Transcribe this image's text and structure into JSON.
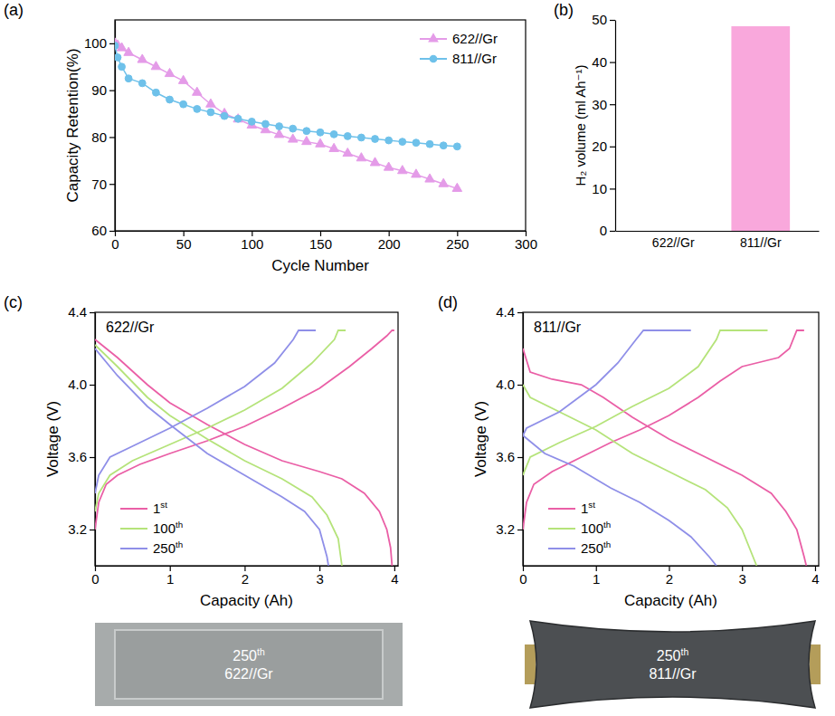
{
  "chart_data": [
    {
      "type": "line",
      "panel_label": "(a)",
      "x_label": "Cycle Number",
      "y_label": "Capacity Retention(%)",
      "x": [
        0,
        2,
        5,
        10,
        20,
        30,
        40,
        50,
        60,
        70,
        80,
        90,
        100,
        110,
        120,
        130,
        140,
        150,
        160,
        170,
        180,
        190,
        200,
        210,
        220,
        230,
        240,
        250
      ],
      "xlim": [
        0,
        300
      ],
      "xticks": [
        0,
        50,
        100,
        150,
        200,
        250,
        300
      ],
      "ylim": [
        60,
        105
      ],
      "yticks": [
        60,
        70,
        80,
        90,
        100
      ],
      "legend": "upper right",
      "series": [
        {
          "name": "622//Gr",
          "color": "#e49be8",
          "marker": "triangle",
          "values": [
            100,
            99.6,
            99,
            98,
            96.5,
            95,
            93.5,
            92,
            89.5,
            87,
            85,
            83.8,
            82.5,
            81.5,
            80.5,
            79.5,
            79,
            78.5,
            77.5,
            76.5,
            75.5,
            74.5,
            73.5,
            72.8,
            72,
            71,
            70,
            69
          ]
        },
        {
          "name": "811//Gr",
          "color": "#6ec1ea",
          "marker": "circle",
          "values": [
            99.5,
            97,
            95,
            92.5,
            91.5,
            89.5,
            88,
            87,
            86,
            85.3,
            84.5,
            83.9,
            83.3,
            82.8,
            82.3,
            81.8,
            81.3,
            81,
            80.6,
            80.2,
            79.9,
            79.6,
            79.3,
            79,
            78.8,
            78.5,
            78.2,
            78
          ]
        }
      ]
    },
    {
      "type": "bar",
      "panel_label": "(b)",
      "y_label": "H₂ volume (ml Ah⁻¹)",
      "categories": [
        "622//Gr",
        "811//Gr"
      ],
      "values": [
        0,
        48.5
      ],
      "color": "#f9a8dc",
      "ylim": [
        0,
        50
      ],
      "yticks": [
        0,
        10,
        20,
        30,
        40,
        50
      ]
    },
    {
      "type": "line",
      "panel_label": "(c)",
      "inset_title": "622//Gr",
      "x_label": "Capacity (Ah)",
      "y_label": "Voltage (V)",
      "xlim": [
        0,
        4.05
      ],
      "xticks": [
        0,
        1,
        2,
        3,
        4
      ],
      "ylim": [
        3.0,
        4.4
      ],
      "yticks": [
        3.2,
        3.6,
        {
          "value": 4,
          "label": "4.0"
        },
        4.4
      ],
      "legend": "lower left",
      "photo_caption": [
        "250th",
        "622//Gr"
      ],
      "series": [
        {
          "name": "1st",
          "color": "#ea5fa6",
          "charge": {
            "x": [
              0,
              0.05,
              0.15,
              0.3,
              0.6,
              1.0,
              1.5,
              2.0,
              2.5,
              3.0,
              3.4,
              3.7,
              3.9,
              3.97,
              4.0
            ],
            "values": [
              3.2,
              3.35,
              3.45,
              3.5,
              3.56,
              3.62,
              3.69,
              3.77,
              3.87,
              3.98,
              4.1,
              4.2,
              4.27,
              4.3,
              4.3
            ]
          },
          "discharge": {
            "x": [
              0,
              0.3,
              0.7,
              1.0,
              1.5,
              2.0,
              2.5,
              3.0,
              3.3,
              3.6,
              3.8,
              3.9,
              3.95,
              3.97
            ],
            "values": [
              4.25,
              4.15,
              4.0,
              3.9,
              3.78,
              3.67,
              3.58,
              3.52,
              3.48,
              3.4,
              3.3,
              3.2,
              3.1,
              3.0
            ]
          }
        },
        {
          "name": "100th",
          "color": "#b5e37a",
          "charge": {
            "x": [
              0,
              0.05,
              0.2,
              0.5,
              1.0,
              1.5,
              2.0,
              2.5,
              2.9,
              3.2,
              3.25,
              3.35
            ],
            "values": [
              3.3,
              3.4,
              3.5,
              3.58,
              3.67,
              3.76,
              3.86,
              3.98,
              4.12,
              4.25,
              4.3,
              4.3
            ]
          },
          "discharge": {
            "x": [
              0,
              0.3,
              0.7,
              1.0,
              1.5,
              2.0,
              2.5,
              2.9,
              3.1,
              3.25,
              3.3
            ],
            "values": [
              4.22,
              4.1,
              3.93,
              3.83,
              3.7,
              3.58,
              3.48,
              3.38,
              3.28,
              3.15,
              3.0
            ]
          }
        },
        {
          "name": "250th",
          "color": "#8f8fe8",
          "charge": {
            "x": [
              0,
              0.05,
              0.2,
              0.5,
              1.0,
              1.5,
              2.0,
              2.4,
              2.65,
              2.72,
              2.95
            ],
            "values": [
              3.4,
              3.5,
              3.6,
              3.66,
              3.76,
              3.87,
              3.99,
              4.12,
              4.25,
              4.3,
              4.3
            ]
          },
          "discharge": {
            "x": [
              0,
              0.3,
              0.7,
              1.0,
              1.5,
              2.0,
              2.5,
              2.8,
              3.0,
              3.1,
              3.12
            ],
            "values": [
              4.2,
              4.05,
              3.88,
              3.78,
              3.62,
              3.5,
              3.38,
              3.3,
              3.2,
              3.05,
              3.0
            ]
          }
        }
      ]
    },
    {
      "type": "line",
      "panel_label": "(d)",
      "inset_title": "811//Gr",
      "x_label": "Capacity (Ah)",
      "y_label": "Voltage (V)",
      "xlim": [
        0,
        4.05
      ],
      "xticks": [
        0,
        1,
        2,
        3,
        4
      ],
      "ylim": [
        3.0,
        4.4
      ],
      "yticks": [
        3.2,
        3.6,
        {
          "value": 4,
          "label": "4.0"
        },
        4.4
      ],
      "legend": "lower left",
      "photo_caption": [
        "250th",
        "811//Gr"
      ],
      "series": [
        {
          "name": "1st",
          "color": "#ea5fa6",
          "charge": {
            "x": [
              0,
              0.05,
              0.15,
              0.4,
              0.8,
              1.2,
              1.6,
              2.0,
              2.4,
              2.7,
              3.0,
              3.3,
              3.5,
              3.65,
              3.75,
              3.85
            ],
            "values": [
              3.2,
              3.35,
              3.45,
              3.52,
              3.6,
              3.68,
              3.75,
              3.83,
              3.93,
              4.02,
              4.1,
              4.13,
              4.15,
              4.2,
              4.3,
              4.3
            ]
          },
          "discharge": {
            "x": [
              0,
              0.1,
              0.4,
              0.8,
              1.1,
              1.5,
              2.0,
              2.5,
              3.0,
              3.4,
              3.6,
              3.75,
              3.85,
              3.88
            ],
            "values": [
              4.2,
              4.07,
              4.03,
              4.0,
              3.93,
              3.82,
              3.7,
              3.6,
              3.5,
              3.4,
              3.3,
              3.2,
              3.05,
              3.0
            ]
          }
        },
        {
          "name": "100th",
          "color": "#b5e37a",
          "charge": {
            "x": [
              0,
              0.1,
              0.5,
              1.0,
              1.5,
              2.0,
              2.4,
              2.65,
              2.7,
              3.35
            ],
            "values": [
              3.5,
              3.6,
              3.68,
              3.77,
              3.88,
              3.98,
              4.1,
              4.25,
              4.3,
              4.3
            ]
          },
          "discharge": {
            "x": [
              0,
              0.1,
              0.5,
              1.0,
              1.5,
              2.0,
              2.5,
              2.8,
              3.0,
              3.15,
              3.2
            ],
            "values": [
              4.0,
              3.93,
              3.85,
              3.75,
              3.62,
              3.52,
              3.42,
              3.32,
              3.2,
              3.05,
              3.0
            ]
          }
        },
        {
          "name": "250th",
          "color": "#8f8fe8",
          "charge": {
            "x": [
              0,
              0.05,
              0.5,
              1.0,
              1.3,
              1.55,
              1.65,
              2.3
            ],
            "values": [
              3.72,
              3.76,
              3.85,
              4.0,
              4.12,
              4.25,
              4.3,
              4.3
            ]
          },
          "discharge": {
            "x": [
              0,
              0.3,
              0.7,
              1.2,
              1.6,
              2.0,
              2.3,
              2.55,
              2.65
            ],
            "values": [
              3.72,
              3.62,
              3.55,
              3.43,
              3.35,
              3.25,
              3.16,
              3.05,
              3.0
            ]
          }
        }
      ]
    }
  ]
}
